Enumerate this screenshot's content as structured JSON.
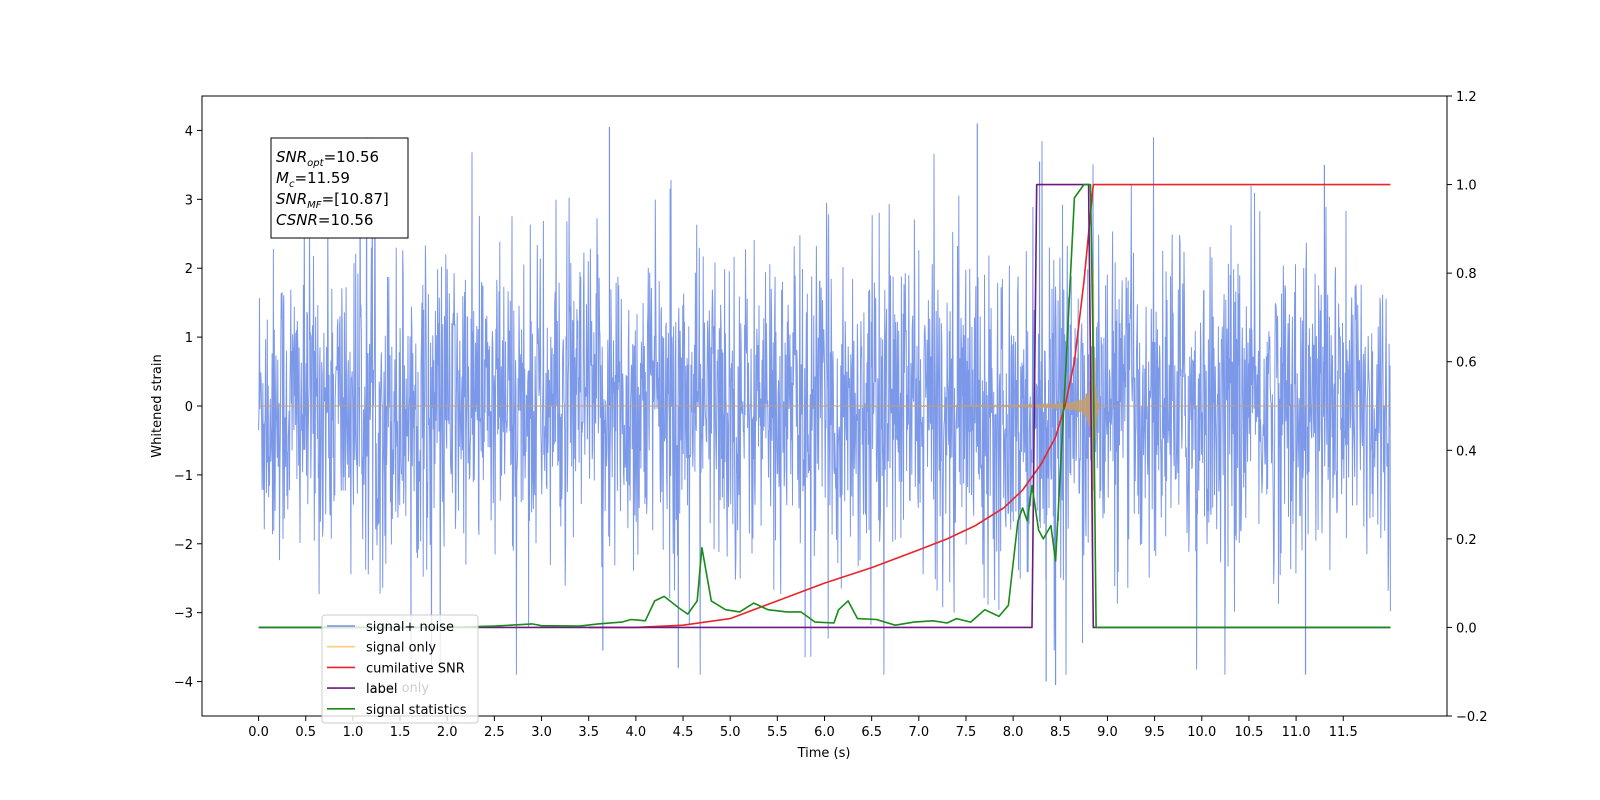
{
  "chart_data": {
    "type": "line",
    "title": "",
    "xlabel": "Time (s)",
    "ylabel": "Whitened strain",
    "y2label": "",
    "xlim": [
      -0.6,
      12.6
    ],
    "ylim": [
      -4.5,
      4.5
    ],
    "y2lim": [
      -0.2,
      1.2
    ],
    "xticks": [
      "0.0",
      "0.5",
      "1.0",
      "1.5",
      "2.0",
      "2.5",
      "3.0",
      "3.5",
      "4.0",
      "4.5",
      "5.0",
      "5.5",
      "6.0",
      "6.5",
      "7.0",
      "7.5",
      "8.0",
      "8.5",
      "9.0",
      "9.5",
      "10.0",
      "10.5",
      "11.0",
      "11.5"
    ],
    "yticks": [
      "4",
      "3",
      "2",
      "1",
      "0",
      "−1",
      "−2",
      "−3",
      "−4"
    ],
    "y2ticks": [
      "1.2",
      "1.0",
      "0.8",
      "0.6",
      "0.4",
      "0.2",
      "0.0",
      "−0.2"
    ],
    "annotation": {
      "lines": [
        {
          "base": "SNR",
          "sub": "opt",
          "rest": "=10.56"
        },
        {
          "base": "M",
          "sub": "c",
          "rest": "=11.59"
        },
        {
          "base": "SNR",
          "sub": "MF",
          "rest": "=[10.87]"
        },
        {
          "base": "CSNR",
          "sub": "",
          "rest": "=10.56"
        }
      ]
    },
    "legend": {
      "position": "lower-left",
      "entries": [
        "signal+ noise",
        "signal only",
        "cumilative SNR",
        "label",
        "signal statistics"
      ]
    },
    "hidden_legend_text": [
      "label only"
    ],
    "series": [
      {
        "name": "signal+ noise",
        "color": "#7592e8",
        "axis": "left",
        "kind": "noise",
        "x_range": [
          0,
          12
        ],
        "envelope": 1.5,
        "signal_end": 8.85,
        "spikes": [
          [
            3.72,
            4.05
          ],
          [
            7.62,
            4.1
          ],
          [
            8.28,
            3.55
          ],
          [
            11.3,
            3.5
          ],
          [
            8.35,
            -4.0
          ],
          [
            8.45,
            -4.05
          ],
          [
            11.1,
            -3.9
          ],
          [
            4.45,
            -3.8
          ],
          [
            3.65,
            -3.55
          ]
        ]
      },
      {
        "name": "signal only",
        "color": "#c39e72",
        "axis": "left",
        "kind": "chirp",
        "t_merge": 8.85,
        "amp_at_merge": 3.2,
        "amp_at_4s": 0.06
      },
      {
        "name": "cumilative SNR",
        "color": "#e8262a",
        "axis": "right",
        "points": [
          [
            3.5,
            0.0
          ],
          [
            4.0,
            0.0
          ],
          [
            4.5,
            0.005
          ],
          [
            5.0,
            0.02
          ],
          [
            5.5,
            0.06
          ],
          [
            6.0,
            0.1
          ],
          [
            6.5,
            0.135
          ],
          [
            7.0,
            0.175
          ],
          [
            7.3,
            0.2
          ],
          [
            7.6,
            0.23
          ],
          [
            7.9,
            0.27
          ],
          [
            8.1,
            0.31
          ],
          [
            8.3,
            0.37
          ],
          [
            8.45,
            0.43
          ],
          [
            8.55,
            0.5
          ],
          [
            8.65,
            0.6
          ],
          [
            8.75,
            0.78
          ],
          [
            8.85,
            1.0
          ],
          [
            11.5,
            1.0
          ],
          [
            12.0,
            1.0
          ]
        ]
      },
      {
        "name": "label",
        "color": "#6b1a80",
        "axis": "right",
        "points": [
          [
            0.0,
            0.0
          ],
          [
            8.2,
            0.0
          ],
          [
            8.25,
            1.0
          ],
          [
            8.8,
            1.0
          ],
          [
            8.85,
            0.0
          ],
          [
            12.0,
            0.0
          ]
        ]
      },
      {
        "name": "signal statistics",
        "color": "#1a8a1a",
        "axis": "right",
        "points": [
          [
            0.0,
            0.0
          ],
          [
            2.0,
            0.0
          ],
          [
            2.5,
            0.003
          ],
          [
            2.9,
            0.008
          ],
          [
            3.0,
            0.004
          ],
          [
            3.4,
            0.003
          ],
          [
            3.6,
            0.008
          ],
          [
            3.85,
            0.012
          ],
          [
            3.95,
            0.018
          ],
          [
            4.1,
            0.015
          ],
          [
            4.2,
            0.06
          ],
          [
            4.3,
            0.07
          ],
          [
            4.45,
            0.045
          ],
          [
            4.55,
            0.03
          ],
          [
            4.65,
            0.06
          ],
          [
            4.7,
            0.18
          ],
          [
            4.8,
            0.06
          ],
          [
            4.95,
            0.04
          ],
          [
            5.1,
            0.035
          ],
          [
            5.25,
            0.055
          ],
          [
            5.4,
            0.04
          ],
          [
            5.6,
            0.035
          ],
          [
            5.75,
            0.035
          ],
          [
            5.9,
            0.012
          ],
          [
            6.1,
            0.01
          ],
          [
            6.15,
            0.04
          ],
          [
            6.25,
            0.06
          ],
          [
            6.35,
            0.02
          ],
          [
            6.55,
            0.018
          ],
          [
            6.75,
            0.005
          ],
          [
            6.95,
            0.012
          ],
          [
            7.15,
            0.015
          ],
          [
            7.3,
            0.01
          ],
          [
            7.4,
            0.02
          ],
          [
            7.55,
            0.012
          ],
          [
            7.7,
            0.04
          ],
          [
            7.85,
            0.025
          ],
          [
            7.95,
            0.05
          ],
          [
            8.05,
            0.24
          ],
          [
            8.1,
            0.27
          ],
          [
            8.15,
            0.24
          ],
          [
            8.2,
            0.32
          ],
          [
            8.27,
            0.22
          ],
          [
            8.32,
            0.2
          ],
          [
            8.4,
            0.23
          ],
          [
            8.45,
            0.15
          ],
          [
            8.55,
            0.55
          ],
          [
            8.65,
            0.97
          ],
          [
            8.75,
            1.0
          ],
          [
            8.82,
            1.0
          ],
          [
            8.85,
            0.6
          ],
          [
            8.88,
            0.0
          ],
          [
            12.0,
            0.0
          ]
        ]
      }
    ]
  }
}
